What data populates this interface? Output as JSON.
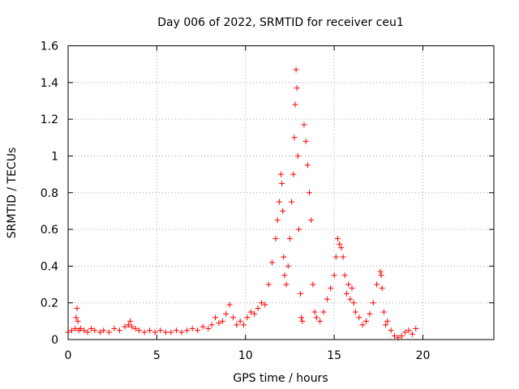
{
  "chart_data": {
    "type": "scatter",
    "title": "Day 006 of 2022, SRMTID for receiver ceu1",
    "xlabel": "GPS time / hours",
    "ylabel": "SRMTID / TECUs",
    "xlim": [
      0,
      24
    ],
    "ylim": [
      0,
      1.6
    ],
    "xticks": [
      0,
      5,
      10,
      15,
      20
    ],
    "xtick_labels": [
      "0",
      "5",
      "10",
      "15",
      "20"
    ],
    "yticks": [
      0,
      0.2,
      0.4,
      0.6,
      0.8,
      1,
      1.2,
      1.4,
      1.6
    ],
    "ytick_labels": [
      "0",
      "0.2",
      "0.4",
      "0.6",
      "0.8",
      "1",
      "1.2",
      "1.4",
      "1.6"
    ],
    "grid": true,
    "marker": "+",
    "color": "#ff0000",
    "series": [
      {
        "name": "ceu1",
        "x": [
          0.0,
          0.2,
          0.4,
          0.45,
          0.5,
          0.55,
          0.6,
          0.7,
          0.9,
          1.1,
          1.3,
          1.5,
          1.8,
          2.0,
          2.3,
          2.6,
          2.9,
          3.2,
          3.4,
          3.5,
          3.6,
          3.8,
          4.0,
          4.3,
          4.6,
          4.9,
          5.2,
          5.5,
          5.8,
          6.1,
          6.4,
          6.7,
          7.0,
          7.3,
          7.6,
          7.9,
          8.1,
          8.3,
          8.5,
          8.7,
          8.9,
          9.1,
          9.3,
          9.5,
          9.7,
          9.9,
          10.1,
          10.3,
          10.5,
          10.7,
          10.9,
          11.1,
          11.3,
          11.5,
          11.7,
          11.8,
          11.9,
          12.0,
          12.05,
          12.1,
          12.15,
          12.2,
          12.3,
          12.4,
          12.5,
          12.6,
          12.7,
          12.75,
          12.8,
          12.85,
          12.9,
          12.95,
          13.0,
          13.1,
          13.15,
          13.2,
          13.3,
          13.4,
          13.5,
          13.6,
          13.7,
          13.8,
          13.9,
          14.0,
          14.2,
          14.4,
          14.6,
          14.8,
          15.0,
          15.1,
          15.2,
          15.3,
          15.4,
          15.5,
          15.6,
          15.7,
          15.8,
          15.9,
          16.0,
          16.1,
          16.2,
          16.4,
          16.6,
          16.8,
          17.0,
          17.2,
          17.4,
          17.6,
          17.65,
          17.7,
          17.8,
          17.9,
          18.0,
          18.2,
          18.4,
          18.6,
          18.8,
          19.0,
          19.2,
          19.4,
          19.6
        ],
        "y": [
          0.04,
          0.05,
          0.06,
          0.12,
          0.17,
          0.1,
          0.05,
          0.06,
          0.05,
          0.04,
          0.06,
          0.05,
          0.04,
          0.05,
          0.04,
          0.06,
          0.05,
          0.07,
          0.08,
          0.1,
          0.07,
          0.06,
          0.05,
          0.04,
          0.05,
          0.04,
          0.05,
          0.04,
          0.04,
          0.05,
          0.04,
          0.05,
          0.06,
          0.05,
          0.07,
          0.06,
          0.08,
          0.12,
          0.09,
          0.1,
          0.14,
          0.19,
          0.12,
          0.08,
          0.1,
          0.08,
          0.12,
          0.15,
          0.14,
          0.17,
          0.2,
          0.19,
          0.3,
          0.42,
          0.55,
          0.65,
          0.75,
          0.9,
          0.85,
          0.7,
          0.45,
          0.35,
          0.3,
          0.4,
          0.55,
          0.75,
          0.9,
          1.1,
          1.28,
          1.47,
          1.37,
          1.0,
          0.6,
          0.25,
          0.12,
          0.1,
          1.17,
          1.08,
          0.95,
          0.8,
          0.65,
          0.3,
          0.15,
          0.12,
          0.1,
          0.15,
          0.22,
          0.28,
          0.35,
          0.45,
          0.55,
          0.52,
          0.5,
          0.45,
          0.35,
          0.25,
          0.3,
          0.22,
          0.28,
          0.2,
          0.15,
          0.12,
          0.08,
          0.1,
          0.14,
          0.2,
          0.3,
          0.37,
          0.35,
          0.28,
          0.15,
          0.08,
          0.1,
          0.05,
          0.02,
          0.01,
          0.02,
          0.04,
          0.05,
          0.03,
          0.06
        ]
      }
    ]
  }
}
